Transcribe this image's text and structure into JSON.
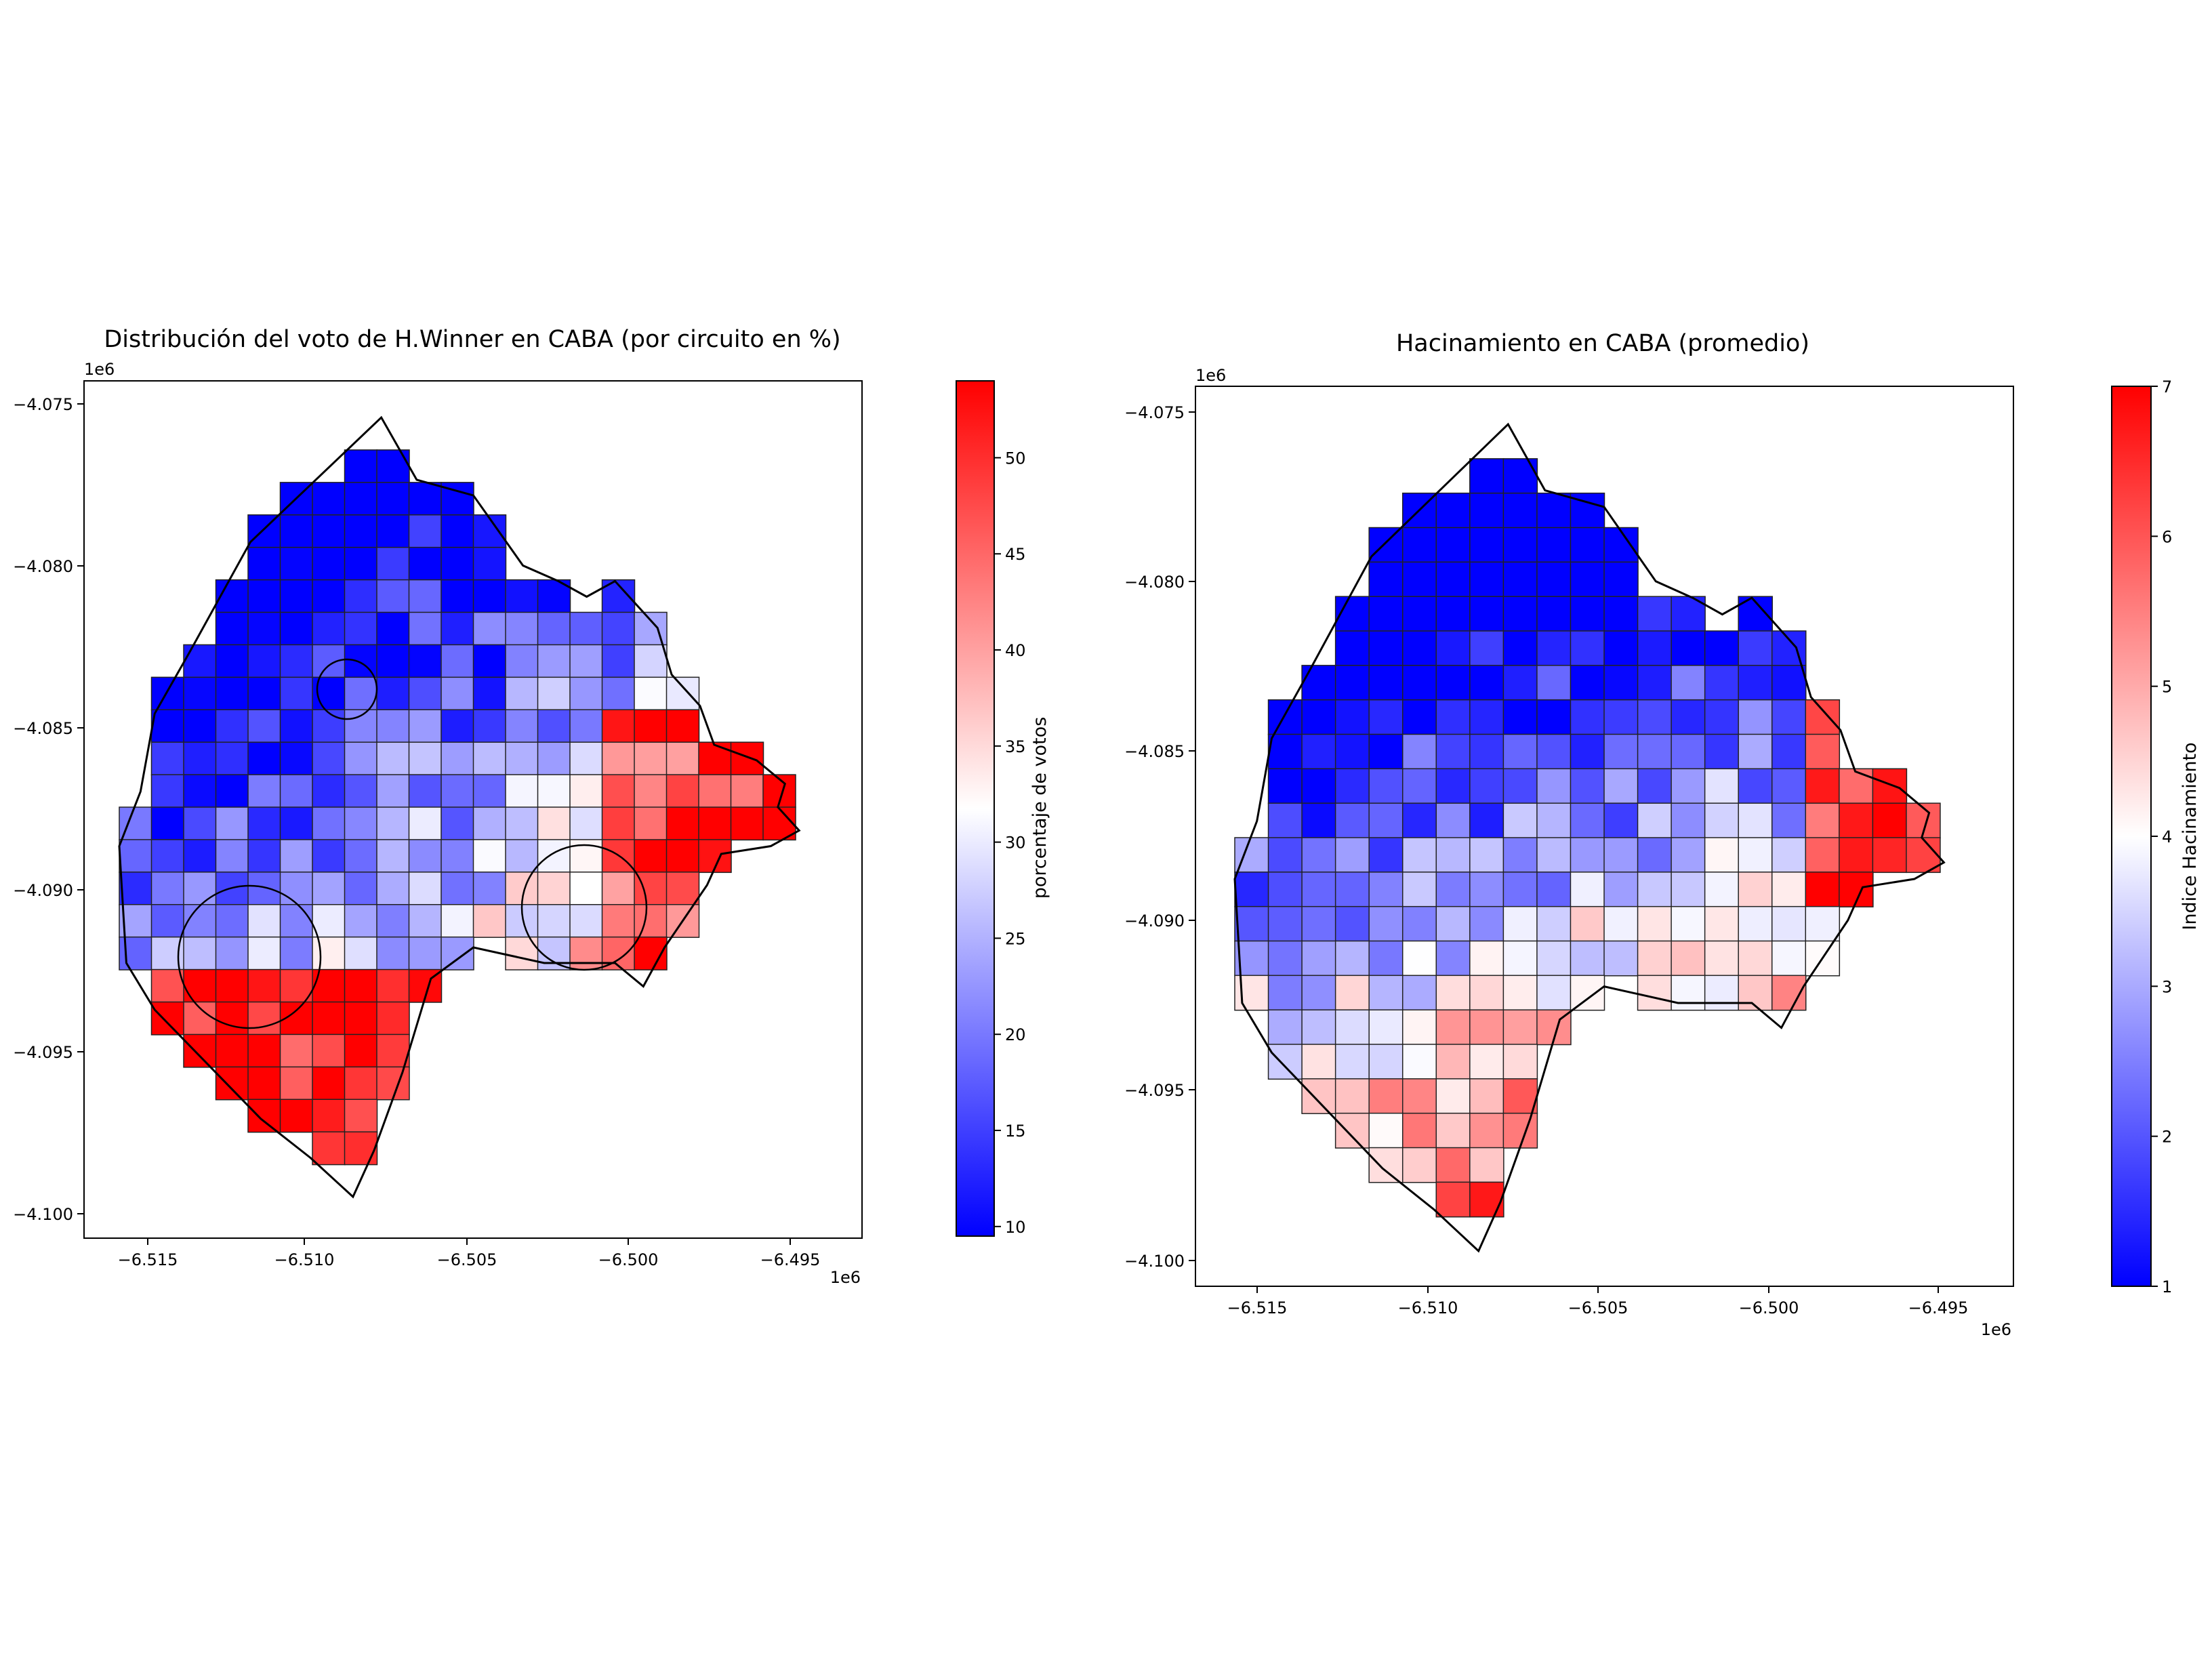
{
  "chart_data": [
    {
      "type": "choropleth",
      "title": "Distribución del voto de H.Winner en CABA (por circuito en %)",
      "x_ticks": [
        "−6.515",
        "−6.510",
        "−6.505",
        "−6.500",
        "−6.495"
      ],
      "x_offset_label": "1e6",
      "y_ticks": [
        "−4.075",
        "−4.080",
        "−4.085",
        "−4.090",
        "−4.095",
        "−4.100"
      ],
      "y_offset_label": "1e6",
      "colorbar": {
        "label": "porcentaje de votos",
        "range": [
          9.5,
          54
        ],
        "ticks": [
          "10",
          "15",
          "20",
          "25",
          "30",
          "35",
          "40",
          "45",
          "50"
        ],
        "colors": {
          "low": "#0000ff",
          "mid": "#ffffff",
          "high": "#ff0000"
        }
      },
      "annotations": [
        "3 black circles highlighting areas"
      ]
    },
    {
      "type": "choropleth",
      "title": "Hacinamiento en CABA (promedio)",
      "x_ticks": [
        "−6.515",
        "−6.510",
        "−6.505",
        "−6.500",
        "−6.495"
      ],
      "x_offset_label": "1e6",
      "y_ticks": [
        "−4.075",
        "−4.080",
        "−4.085",
        "−4.090",
        "−4.095",
        "−4.100"
      ],
      "y_offset_label": "1e6",
      "colorbar": {
        "label": "Indice Hacinamiento",
        "range": [
          1,
          7
        ],
        "ticks": [
          "1",
          "2",
          "3",
          "4",
          "5",
          "6",
          "7"
        ],
        "colors": {
          "low": "#0000ff",
          "mid": "#ffffff",
          "high": "#ff0000"
        }
      }
    }
  ]
}
